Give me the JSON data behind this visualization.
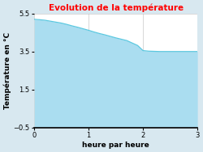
{
  "title": "Evolution de la température",
  "title_color": "#ff0000",
  "xlabel": "heure par heure",
  "ylabel": "Température en °C",
  "xlim": [
    0,
    3
  ],
  "ylim": [
    -0.5,
    5.5
  ],
  "xticks": [
    0,
    1,
    2,
    3
  ],
  "yticks": [
    -0.5,
    1.5,
    3.5,
    5.5
  ],
  "x": [
    0,
    0.1,
    0.2,
    0.3,
    0.4,
    0.5,
    0.6,
    0.7,
    0.8,
    0.9,
    1.0,
    1.1,
    1.2,
    1.3,
    1.4,
    1.5,
    1.6,
    1.7,
    1.8,
    1.9,
    2.0,
    2.1,
    2.2,
    2.3,
    2.4,
    2.5,
    2.6,
    2.7,
    2.8,
    2.9,
    3.0
  ],
  "y": [
    5.2,
    5.18,
    5.15,
    5.1,
    5.05,
    5.0,
    4.93,
    4.85,
    4.78,
    4.7,
    4.62,
    4.53,
    4.45,
    4.38,
    4.3,
    4.22,
    4.15,
    4.08,
    3.95,
    3.82,
    3.55,
    3.52,
    3.51,
    3.5,
    3.5,
    3.5,
    3.5,
    3.5,
    3.5,
    3.5,
    3.5
  ],
  "line_color": "#5bc8e0",
  "fill_color": "#aaddf0",
  "background_color": "#d8e8f0",
  "plot_bg_color": "#ffffff",
  "grid_color": "#bbbbbb",
  "title_fontsize": 7.5,
  "axis_label_fontsize": 6.5,
  "tick_fontsize": 6
}
